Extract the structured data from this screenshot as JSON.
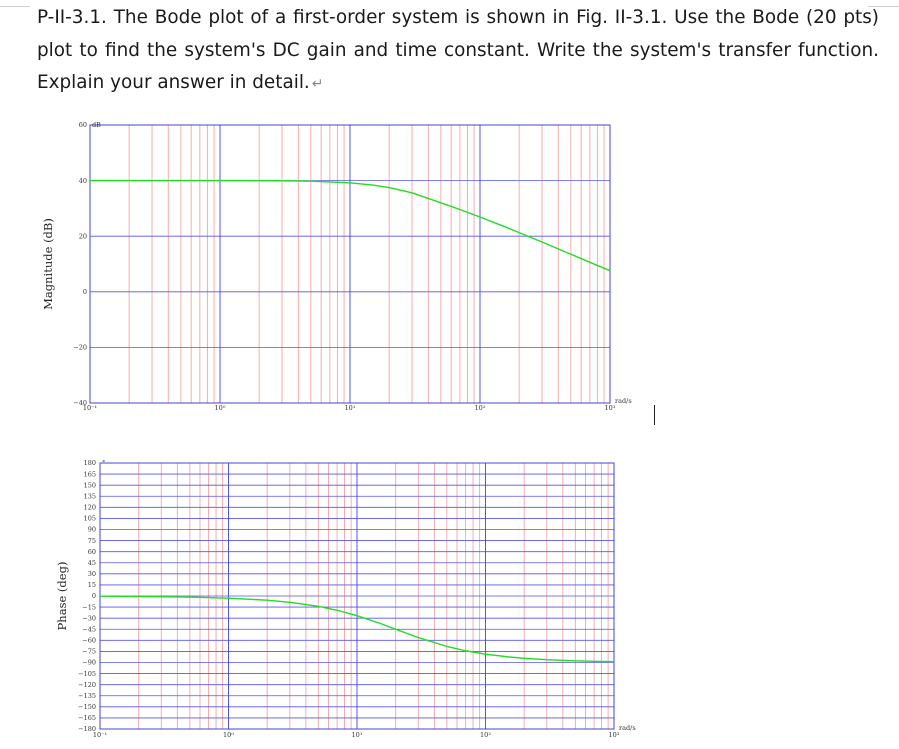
{
  "question": {
    "text": "P-II-3.1. The Bode plot of a first-order system is shown in Fig. II-3.1. Use the Bode (20 pts) plot to find the system's DC gain and time constant. Write the system's transfer function. Explain your answer in detail.",
    "return_mark": "↵"
  },
  "chart_data": [
    {
      "type": "line",
      "xscale": "log",
      "xlim": [
        0.1,
        1000
      ],
      "ylim": [
        -40,
        60
      ],
      "ylabel": "Magnitude (dB)",
      "yunit": "dB",
      "xunit": "rad/s",
      "yticks": [
        -40,
        -20,
        0,
        20,
        40,
        60
      ],
      "ytick_labels": [
        "−40",
        "−20",
        "0",
        "20",
        "40",
        "60"
      ],
      "xticks": [
        0.1,
        1,
        10,
        100,
        1000
      ],
      "xtick_labels": [
        "10⁻¹",
        "10⁰",
        "10¹",
        "10²",
        "10³"
      ],
      "grid": true,
      "series": [
        {
          "color": "#22dd22",
          "x": [
            0.1,
            0.5,
            1,
            3,
            5,
            10,
            15,
            20,
            30,
            50,
            70,
            100,
            150,
            200,
            300,
            500,
            700,
            1000
          ],
          "y": [
            40,
            40,
            40,
            39.95,
            39.8,
            39.2,
            38.4,
            37.5,
            35.6,
            32.0,
            29.6,
            26.9,
            23.7,
            21.3,
            17.9,
            13.5,
            10.6,
            7.6
          ]
        }
      ]
    },
    {
      "type": "line",
      "xscale": "log",
      "xlim": [
        0.1,
        1000
      ],
      "ylim": [
        -180,
        180
      ],
      "ylabel": "Phase (deg)",
      "yunit": "°",
      "xunit": "rad/s",
      "yticks": [
        180,
        165,
        150,
        135,
        120,
        105,
        90,
        75,
        60,
        45,
        30,
        15,
        0,
        -15,
        -30,
        -45,
        -60,
        -75,
        -90,
        -105,
        -120,
        -135,
        -150,
        -165,
        -180
      ],
      "ytick_labels": [
        "180",
        "165",
        "150",
        "135",
        "120",
        "105",
        "90",
        "75",
        "60",
        "45",
        "30",
        "15",
        "0",
        "−15",
        "−30",
        "−45",
        "−60",
        "−75",
        "−90",
        "−105",
        "−120",
        "−135",
        "−150",
        "−165",
        "−180"
      ],
      "xticks": [
        0.1,
        1,
        10,
        100,
        1000
      ],
      "xtick_labels": [
        "10⁻¹",
        "10⁰",
        "10¹",
        "10²",
        "10³"
      ],
      "grid": true,
      "series": [
        {
          "color": "#22dd22",
          "x": [
            0.1,
            0.5,
            1,
            2,
            3,
            5,
            7,
            10,
            15,
            20,
            30,
            50,
            70,
            100,
            150,
            200,
            300,
            500,
            700,
            1000
          ],
          "y": [
            -0.3,
            -1.4,
            -2.9,
            -5.7,
            -8.5,
            -14.0,
            -19.3,
            -26.6,
            -36.9,
            -45,
            -56.3,
            -68.2,
            -74.1,
            -78.7,
            -82.4,
            -84.3,
            -86.2,
            -87.7,
            -88.4,
            -88.9
          ]
        }
      ]
    }
  ]
}
